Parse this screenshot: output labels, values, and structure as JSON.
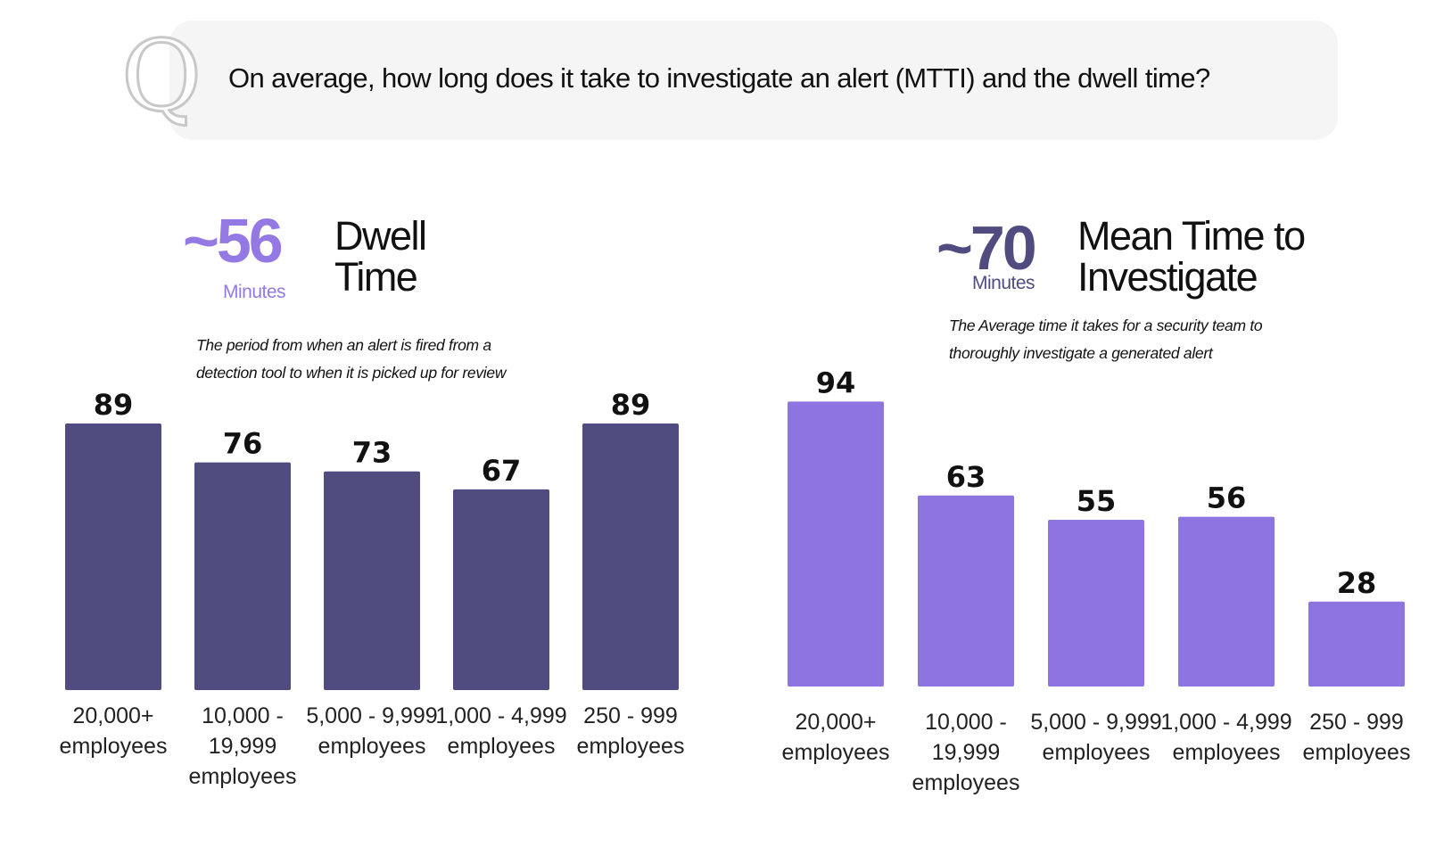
{
  "question": {
    "icon": "Q",
    "text": "On average, how long does it take to investigate an alert (MTTI) and the dwell time?"
  },
  "chart_data": [
    {
      "type": "bar",
      "headline": "~56",
      "unit": "Minutes",
      "title": "Dwell Time",
      "description": "The period from when an alert is fired from a detection tool to when it is picked up for review",
      "categories": [
        "20,000+ employees",
        "10,000 - 19,999 employees",
        "5,000 - 9,999 employees",
        "1,000 - 4,999 employees",
        "250 - 999 employees"
      ],
      "values": [
        89,
        76,
        73,
        67,
        89
      ],
      "color": "#514c80",
      "headline_color": "#9479e4"
    },
    {
      "type": "bar",
      "headline": "~70",
      "unit": "Minutes",
      "title": "Mean Time to Investigate",
      "description": "The Average time it takes for a security team to thoroughly investigate a generated alert",
      "categories": [
        "20,000+ employees",
        "10,000 - 19,999 employees",
        "5,000 - 9,999 employees",
        "1,000 - 4,999 employees",
        "250 - 999 employees"
      ],
      "values": [
        94,
        63,
        55,
        56,
        28
      ],
      "color": "#8e74e0",
      "headline_color": "#514c80"
    }
  ]
}
